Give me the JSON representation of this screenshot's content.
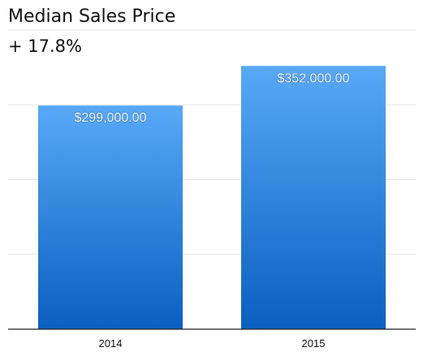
{
  "chart_data": {
    "type": "bar",
    "title": "Median Sales Price",
    "subtitle": "+ 17.8%",
    "categories": [
      "2014",
      "2015"
    ],
    "values": [
      299000,
      352000
    ],
    "data_labels": [
      "$299,000.00",
      "$352,000.00"
    ],
    "xlabel": "",
    "ylabel": "",
    "ylim": [
      0,
      400000
    ],
    "grid": true,
    "legend": "none",
    "colors": {
      "bar_top": "#58a9f7",
      "bar_bottom": "#0a5fc0",
      "grid": "#e6e6e6",
      "axis": "#222222"
    }
  }
}
